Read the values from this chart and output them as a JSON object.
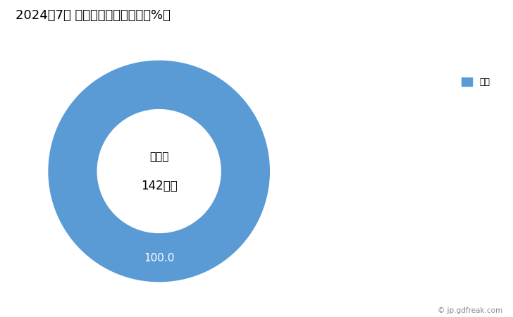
{
  "title": "2024年7月 輸出相手国のシェア（%）",
  "title_fontsize": 13,
  "slices": [
    100.0
  ],
  "labels": [
    "台湾"
  ],
  "colors": [
    "#5B9BD5"
  ],
  "center_label_line1": "総　額",
  "center_label_line2": "142万円",
  "slice_label": "100.0",
  "legend_label": "台湾",
  "watermark": "© jp.gdfreak.com",
  "background_color": "#ffffff"
}
